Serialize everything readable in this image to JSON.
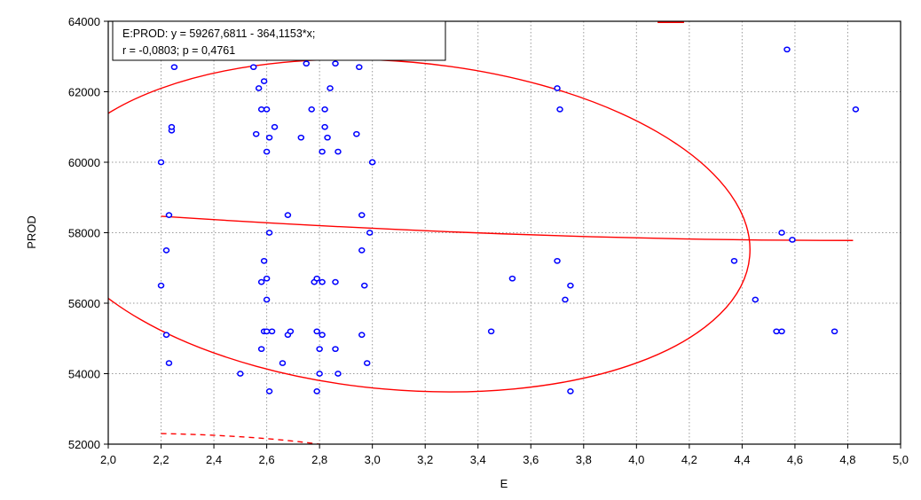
{
  "chart_data": {
    "type": "scatter",
    "title": "",
    "xlabel": "E",
    "ylabel": "PROD",
    "xlim": [
      2.0,
      5.0
    ],
    "ylim": [
      52000,
      64000
    ],
    "x_ticks": [
      "2,0",
      "2,2",
      "2,4",
      "2,6",
      "2,8",
      "3,0",
      "3,2",
      "3,4",
      "3,6",
      "3,8",
      "4,0",
      "4,2",
      "4,4",
      "4,6",
      "4,8",
      "5,0"
    ],
    "y_ticks": [
      "52000",
      "54000",
      "56000",
      "58000",
      "60000",
      "62000",
      "64000"
    ],
    "grid": true,
    "annotation": {
      "line1": "E:PROD:  y = 59267,6811 - 364,1153*x;",
      "line2": "r = -0,0803; p = 0,4761"
    },
    "regression": {
      "intercept": 59267.6811,
      "slope": -364.1153,
      "x_range": [
        2.2,
        4.82
      ]
    },
    "ellipse_center": [
      3.1,
      58200
    ],
    "colors": {
      "points": "#0000ff",
      "lines": "#ff0000",
      "grid": "#9a9a9a"
    },
    "points": [
      [
        2.2,
        60000
      ],
      [
        2.2,
        56500
      ],
      [
        2.22,
        55100
      ],
      [
        2.22,
        57500
      ],
      [
        2.23,
        54300
      ],
      [
        2.23,
        58500
      ],
      [
        2.24,
        60900
      ],
      [
        2.24,
        61000
      ],
      [
        2.25,
        62700
      ],
      [
        2.5,
        54000
      ],
      [
        2.55,
        62700
      ],
      [
        2.56,
        60800
      ],
      [
        2.57,
        62100
      ],
      [
        2.58,
        61500
      ],
      [
        2.58,
        56600
      ],
      [
        2.58,
        54700
      ],
      [
        2.59,
        62300
      ],
      [
        2.59,
        57200
      ],
      [
        2.59,
        55200
      ],
      [
        2.6,
        60300
      ],
      [
        2.6,
        61500
      ],
      [
        2.6,
        56700
      ],
      [
        2.6,
        56100
      ],
      [
        2.6,
        55200
      ],
      [
        2.61,
        60700
      ],
      [
        2.61,
        58000
      ],
      [
        2.61,
        53500
      ],
      [
        2.62,
        55200
      ],
      [
        2.63,
        61000
      ],
      [
        2.66,
        54300
      ],
      [
        2.68,
        55100
      ],
      [
        2.68,
        58500
      ],
      [
        2.69,
        55200
      ],
      [
        2.73,
        60700
      ],
      [
        2.75,
        62800
      ],
      [
        2.77,
        61500
      ],
      [
        2.78,
        56600
      ],
      [
        2.79,
        56700
      ],
      [
        2.79,
        55200
      ],
      [
        2.79,
        53500
      ],
      [
        2.8,
        54700
      ],
      [
        2.8,
        54000
      ],
      [
        2.81,
        60300
      ],
      [
        2.81,
        56600
      ],
      [
        2.81,
        55100
      ],
      [
        2.82,
        61000
      ],
      [
        2.82,
        61500
      ],
      [
        2.83,
        60700
      ],
      [
        2.84,
        62100
      ],
      [
        2.86,
        62800
      ],
      [
        2.86,
        54700
      ],
      [
        2.86,
        56600
      ],
      [
        2.87,
        60300
      ],
      [
        2.87,
        54000
      ],
      [
        2.94,
        60800
      ],
      [
        2.95,
        62700
      ],
      [
        2.96,
        57500
      ],
      [
        2.96,
        58500
      ],
      [
        2.96,
        55100
      ],
      [
        2.97,
        56500
      ],
      [
        2.98,
        54300
      ],
      [
        2.99,
        58000
      ],
      [
        3.0,
        60000
      ],
      [
        3.0,
        60000
      ],
      [
        3.45,
        55200
      ],
      [
        3.53,
        56700
      ],
      [
        3.7,
        62100
      ],
      [
        3.7,
        57200
      ],
      [
        3.71,
        61500
      ],
      [
        3.73,
        56100
      ],
      [
        3.75,
        56500
      ],
      [
        3.75,
        53500
      ],
      [
        4.37,
        57200
      ],
      [
        4.45,
        56100
      ],
      [
        4.53,
        55200
      ],
      [
        4.55,
        55200
      ],
      [
        4.55,
        58000
      ],
      [
        4.57,
        63200
      ],
      [
        4.59,
        57800
      ],
      [
        4.75,
        55200
      ],
      [
        4.83,
        61500
      ]
    ]
  }
}
